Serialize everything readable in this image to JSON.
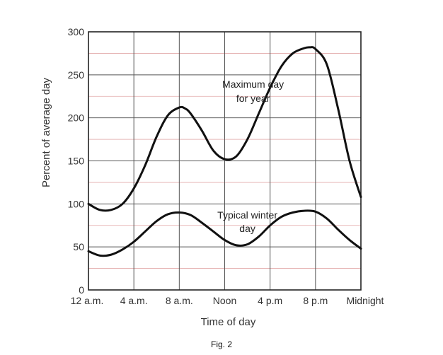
{
  "chart_data": {
    "type": "line",
    "xlabel": "Time of day",
    "ylabel": "Percent of average day",
    "ylim": [
      0,
      300
    ],
    "xlim": [
      0,
      24
    ],
    "yticks": [
      0,
      50,
      100,
      150,
      200,
      250,
      300
    ],
    "xticks": [
      {
        "value": 0,
        "label": "12 a.m."
      },
      {
        "value": 4,
        "label": "4 a.m."
      },
      {
        "value": 8,
        "label": "8 a.m."
      },
      {
        "value": 12,
        "label": "Noon"
      },
      {
        "value": 16,
        "label": "4 p.m"
      },
      {
        "value": 20,
        "label": "8 p.m"
      },
      {
        "value": 24,
        "label": "Midnight"
      }
    ],
    "grid": true,
    "series": [
      {
        "name": "Maximum day for year",
        "label_lines": [
          "Maximum day",
          "for year"
        ],
        "x": [
          0,
          1,
          2,
          3,
          4,
          5,
          6,
          7,
          8,
          8.5,
          9,
          10,
          11,
          12,
          13,
          14,
          15,
          16,
          17,
          18,
          19,
          19.5,
          20,
          21,
          22,
          23,
          24
        ],
        "values": [
          100,
          93,
          93,
          100,
          118,
          145,
          178,
          203,
          212,
          211,
          205,
          185,
          162,
          152,
          155,
          175,
          205,
          235,
          260,
          275,
          281,
          282,
          280,
          262,
          210,
          150,
          108
        ]
      },
      {
        "name": "Typical winter day",
        "label_lines": [
          "Typical winter",
          "day"
        ],
        "x": [
          0,
          1,
          2,
          3,
          4,
          5,
          6,
          7,
          8,
          9,
          10,
          11,
          12,
          13,
          14,
          15,
          16,
          17,
          18,
          19,
          20,
          21,
          22,
          23,
          24
        ],
        "values": [
          45,
          40,
          41,
          47,
          56,
          68,
          80,
          88,
          90,
          87,
          78,
          68,
          58,
          52,
          53,
          62,
          75,
          85,
          90,
          92,
          91,
          83,
          70,
          58,
          48
        ]
      }
    ]
  },
  "caption": "Fig. 2"
}
